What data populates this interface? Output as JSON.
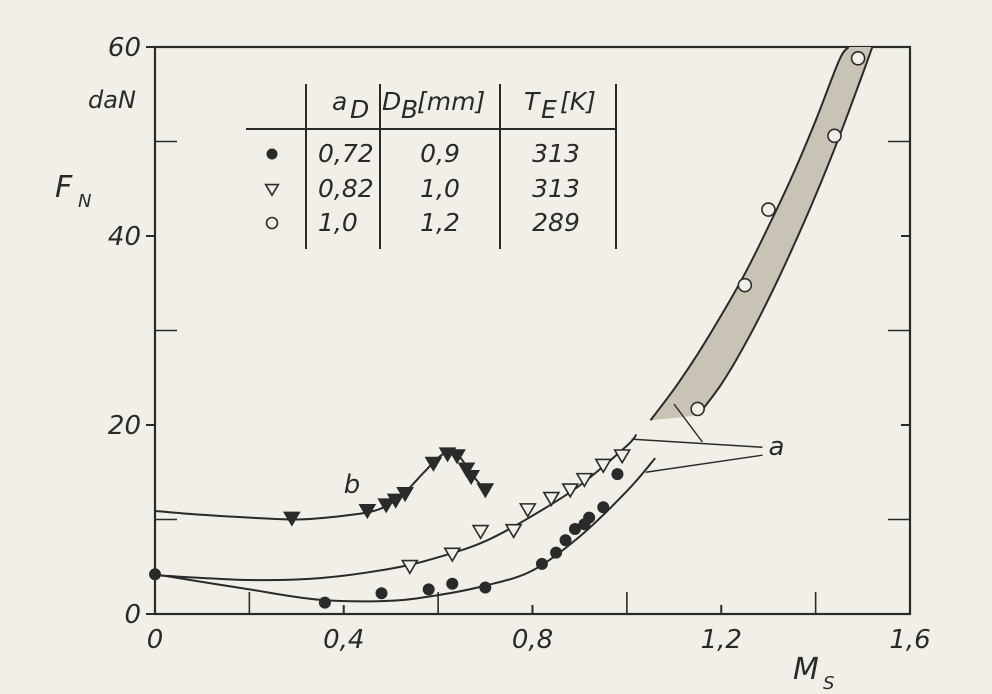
{
  "chart_data": {
    "type": "scatter",
    "xlabel": "M",
    "xlabel_sub": "S",
    "ylabel": "F",
    "ylabel_sub": "N",
    "yunit": "daN",
    "xlim": [
      0,
      1.6
    ],
    "ylim": [
      0,
      60
    ],
    "x_ticks": [
      0,
      0.4,
      0.8,
      1.2,
      1.6
    ],
    "x_tick_labels": [
      "0",
      "0,4",
      "0,8",
      "1,2",
      "1,6"
    ],
    "y_ticks": [
      0,
      20,
      40,
      60
    ],
    "y_tick_labels": [
      "0",
      "20",
      "40",
      "60"
    ],
    "grid": false,
    "legend_table": {
      "placement": "top-left",
      "headers": [
        "a",
        "D",
        "[mm]",
        "T",
        "[K]"
      ],
      "header_subscripts": [
        "D",
        "B",
        "E"
      ],
      "rows": [
        {
          "marker": "filled-circle",
          "a": "0,72",
          "d": "0,9",
          "t": "313"
        },
        {
          "marker": "open-triangle-down",
          "a": "0,82",
          "d": "1,0",
          "t": "313"
        },
        {
          "marker": "open-circle",
          "a": "1,0",
          "d": "1,2",
          "t": "289"
        }
      ]
    },
    "series": [
      {
        "marker": "filled-circle",
        "points": [
          [
            0,
            4.2
          ],
          [
            0.36,
            1.2
          ],
          [
            0.48,
            2.2
          ],
          [
            0.58,
            2.6
          ],
          [
            0.63,
            3.2
          ],
          [
            0.7,
            2.8
          ],
          [
            0.82,
            5.3
          ],
          [
            0.85,
            6.5
          ],
          [
            0.87,
            7.8
          ],
          [
            0.89,
            9.0
          ],
          [
            0.91,
            9.5
          ],
          [
            0.92,
            10.2
          ],
          [
            0.95,
            11.3
          ],
          [
            0.98,
            14.8
          ]
        ]
      },
      {
        "marker": "open-triangle-down",
        "points": [
          [
            0.54,
            5.1
          ],
          [
            0.63,
            6.4
          ],
          [
            0.69,
            8.8
          ],
          [
            0.76,
            8.9
          ],
          [
            0.79,
            11.1
          ],
          [
            0.84,
            12.3
          ],
          [
            0.88,
            13.2
          ],
          [
            0.91,
            14.3
          ],
          [
            0.95,
            15.8
          ],
          [
            0.99,
            16.8
          ]
        ]
      },
      {
        "marker": "open-circle",
        "points": [
          [
            1.15,
            21.7
          ],
          [
            1.25,
            34.8
          ],
          [
            1.3,
            42.8
          ],
          [
            1.44,
            50.6
          ],
          [
            1.49,
            58.8
          ]
        ]
      },
      {
        "name": "b",
        "marker": "filled-triangle-down",
        "points": [
          [
            0.29,
            10.2
          ],
          [
            0.45,
            11.0
          ],
          [
            0.49,
            11.6
          ],
          [
            0.51,
            12.1
          ],
          [
            0.53,
            12.8
          ],
          [
            0.59,
            16.0
          ],
          [
            0.62,
            17.0
          ],
          [
            0.64,
            16.8
          ],
          [
            0.66,
            15.4
          ],
          [
            0.67,
            14.6
          ],
          [
            0.7,
            13.2
          ]
        ]
      }
    ],
    "curves": [
      {
        "id": "lower",
        "points": [
          [
            0,
            4.2
          ],
          [
            0.2,
            2.6
          ],
          [
            0.35,
            1.5
          ],
          [
            0.5,
            1.4
          ],
          [
            0.6,
            2.0
          ],
          [
            0.7,
            3.0
          ],
          [
            0.8,
            4.6
          ],
          [
            0.9,
            8.2
          ],
          [
            1.0,
            13.0
          ],
          [
            1.06,
            16.5
          ]
        ]
      },
      {
        "id": "upper",
        "points": [
          [
            0,
            4.1
          ],
          [
            0.2,
            3.6
          ],
          [
            0.35,
            3.8
          ],
          [
            0.5,
            4.8
          ],
          [
            0.6,
            6.0
          ],
          [
            0.7,
            7.7
          ],
          [
            0.8,
            10.4
          ],
          [
            0.9,
            13.6
          ],
          [
            1.0,
            17.8
          ],
          [
            1.02,
            19.0
          ]
        ]
      },
      {
        "id": "b",
        "points": [
          [
            0,
            10.9
          ],
          [
            0.1,
            10.5
          ],
          [
            0.2,
            10.2
          ],
          [
            0.3,
            10.0
          ],
          [
            0.4,
            10.4
          ],
          [
            0.47,
            11.0
          ],
          [
            0.52,
            12.4
          ],
          [
            0.57,
            15.0
          ],
          [
            0.61,
            16.9
          ],
          [
            0.64,
            16.9
          ],
          [
            0.67,
            14.9
          ],
          [
            0.7,
            13.0
          ]
        ]
      },
      {
        "id": "band-left",
        "points": [
          [
            1.05,
            20.5
          ],
          [
            1.1,
            23.8
          ],
          [
            1.15,
            27.5
          ],
          [
            1.2,
            31.6
          ],
          [
            1.25,
            36.0
          ],
          [
            1.3,
            41.0
          ],
          [
            1.35,
            46.3
          ],
          [
            1.4,
            52.2
          ],
          [
            1.45,
            58.6
          ],
          [
            1.47,
            60.0
          ]
        ]
      },
      {
        "id": "band-right",
        "points": [
          [
            1.15,
            21.0
          ],
          [
            1.2,
            24.3
          ],
          [
            1.25,
            28.5
          ],
          [
            1.3,
            33.3
          ],
          [
            1.35,
            38.6
          ],
          [
            1.4,
            44.3
          ],
          [
            1.45,
            50.5
          ],
          [
            1.5,
            57.2
          ],
          [
            1.52,
            60.0
          ]
        ]
      }
    ],
    "annotations": [
      {
        "text": "a",
        "x": 1.3,
        "y": 16.8
      },
      {
        "text": "b",
        "x": 0.4,
        "y": 12.8
      }
    ]
  }
}
